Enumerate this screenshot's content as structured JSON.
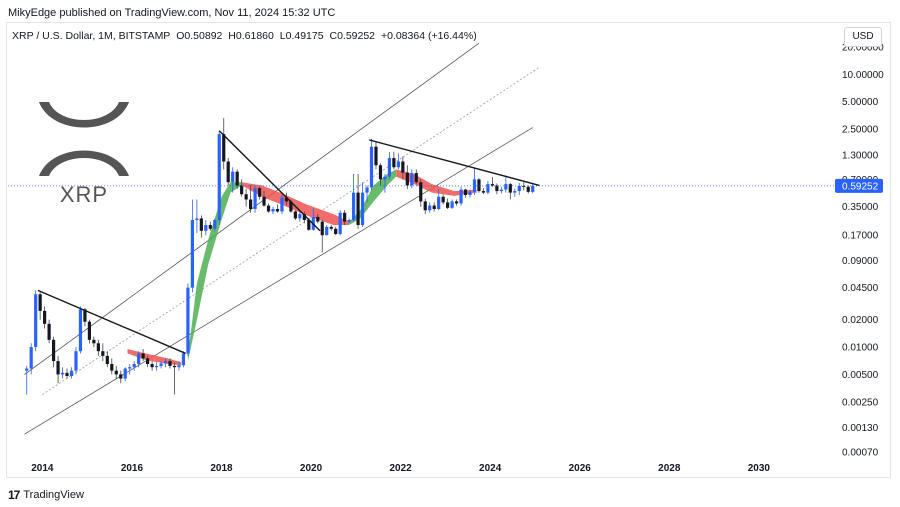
{
  "header": {
    "publish_line": "MikyEdge published on TradingView.com, Nov 11, 2024 15:32 UTC"
  },
  "legend": {
    "symbol": "XRP / U.S. Dollar, 1M, BITSTAMP",
    "open": "O0.50892",
    "high": "H0.61860",
    "low": "L0.49175",
    "close": "C0.59252",
    "change": "+0.08364 (+16.44%)"
  },
  "currency_button": "USD",
  "logo": {
    "text": "XRP"
  },
  "footer": {
    "brand": "TradingView",
    "logo_mark": "17"
  },
  "colors": {
    "up": "#2962ff",
    "down": "#131722",
    "ribbon_up": "#4caf50",
    "ribbon_down": "#ef5350",
    "price_label": "#2962ff",
    "channel": "#555555"
  },
  "chart_data": {
    "type": "candlestick",
    "y_scale": "log",
    "y_ticks": [
      "20.00000",
      "10.00000",
      "5.00000",
      "2.50000",
      "1.30000",
      "0.70000",
      "0.35000",
      "0.17000",
      "0.09000",
      "0.04500",
      "0.02000",
      "0.01000",
      "0.00500",
      "0.00250",
      "0.00130",
      "0.00070"
    ],
    "x_ticks": [
      "2014",
      "2016",
      "2018",
      "2020",
      "2022",
      "2024",
      "2026",
      "2028",
      "2030"
    ],
    "last_price": "0.59252",
    "candles": [
      {
        "t": 2013.65,
        "o": 0.0055,
        "h": 0.0062,
        "l": 0.003,
        "c": 0.0058
      },
      {
        "t": 2013.75,
        "o": 0.0058,
        "h": 0.011,
        "l": 0.005,
        "c": 0.01
      },
      {
        "t": 2013.85,
        "o": 0.01,
        "h": 0.042,
        "l": 0.009,
        "c": 0.038
      },
      {
        "t": 2013.95,
        "o": 0.038,
        "h": 0.04,
        "l": 0.02,
        "c": 0.025
      },
      {
        "t": 2014.05,
        "o": 0.025,
        "h": 0.028,
        "l": 0.016,
        "c": 0.018
      },
      {
        "t": 2014.15,
        "o": 0.018,
        "h": 0.02,
        "l": 0.011,
        "c": 0.012
      },
      {
        "t": 2014.25,
        "o": 0.012,
        "h": 0.013,
        "l": 0.006,
        "c": 0.007
      },
      {
        "t": 2014.35,
        "o": 0.007,
        "h": 0.008,
        "l": 0.004,
        "c": 0.005
      },
      {
        "t": 2014.45,
        "o": 0.005,
        "h": 0.006,
        "l": 0.0045,
        "c": 0.0052
      },
      {
        "t": 2014.55,
        "o": 0.0052,
        "h": 0.0058,
        "l": 0.0045,
        "c": 0.0048
      },
      {
        "t": 2014.65,
        "o": 0.0048,
        "h": 0.006,
        "l": 0.0045,
        "c": 0.0055
      },
      {
        "t": 2014.75,
        "o": 0.0055,
        "h": 0.01,
        "l": 0.005,
        "c": 0.009
      },
      {
        "t": 2014.85,
        "o": 0.009,
        "h": 0.028,
        "l": 0.0085,
        "c": 0.026
      },
      {
        "t": 2014.95,
        "o": 0.026,
        "h": 0.027,
        "l": 0.017,
        "c": 0.019
      },
      {
        "t": 2015.05,
        "o": 0.019,
        "h": 0.02,
        "l": 0.011,
        "c": 0.012
      },
      {
        "t": 2015.15,
        "o": 0.012,
        "h": 0.013,
        "l": 0.01,
        "c": 0.011
      },
      {
        "t": 2015.25,
        "o": 0.011,
        "h": 0.012,
        "l": 0.008,
        "c": 0.009
      },
      {
        "t": 2015.35,
        "o": 0.009,
        "h": 0.011,
        "l": 0.007,
        "c": 0.008
      },
      {
        "t": 2015.45,
        "o": 0.008,
        "h": 0.009,
        "l": 0.006,
        "c": 0.0065
      },
      {
        "t": 2015.55,
        "o": 0.0065,
        "h": 0.0075,
        "l": 0.005,
        "c": 0.0055
      },
      {
        "t": 2015.65,
        "o": 0.0055,
        "h": 0.0062,
        "l": 0.0045,
        "c": 0.005
      },
      {
        "t": 2015.75,
        "o": 0.005,
        "h": 0.0055,
        "l": 0.004,
        "c": 0.0045
      },
      {
        "t": 2015.85,
        "o": 0.0045,
        "h": 0.006,
        "l": 0.0042,
        "c": 0.0058
      },
      {
        "t": 2015.95,
        "o": 0.0058,
        "h": 0.0065,
        "l": 0.005,
        "c": 0.006
      },
      {
        "t": 2016.05,
        "o": 0.006,
        "h": 0.007,
        "l": 0.0055,
        "c": 0.0065
      },
      {
        "t": 2016.15,
        "o": 0.0065,
        "h": 0.009,
        "l": 0.006,
        "c": 0.0085
      },
      {
        "t": 2016.25,
        "o": 0.0085,
        "h": 0.0095,
        "l": 0.007,
        "c": 0.0075
      },
      {
        "t": 2016.35,
        "o": 0.0075,
        "h": 0.008,
        "l": 0.006,
        "c": 0.0065
      },
      {
        "t": 2016.45,
        "o": 0.0065,
        "h": 0.007,
        "l": 0.0055,
        "c": 0.006
      },
      {
        "t": 2016.55,
        "o": 0.006,
        "h": 0.0068,
        "l": 0.0055,
        "c": 0.0062
      },
      {
        "t": 2016.65,
        "o": 0.0062,
        "h": 0.007,
        "l": 0.0058,
        "c": 0.0066
      },
      {
        "t": 2016.75,
        "o": 0.0066,
        "h": 0.0075,
        "l": 0.006,
        "c": 0.007
      },
      {
        "t": 2016.85,
        "o": 0.007,
        "h": 0.0075,
        "l": 0.0058,
        "c": 0.0062
      },
      {
        "t": 2016.95,
        "o": 0.0062,
        "h": 0.0068,
        "l": 0.003,
        "c": 0.006
      },
      {
        "t": 2017.05,
        "o": 0.006,
        "h": 0.007,
        "l": 0.0055,
        "c": 0.0063
      },
      {
        "t": 2017.15,
        "o": 0.0063,
        "h": 0.009,
        "l": 0.006,
        "c": 0.0085
      },
      {
        "t": 2017.25,
        "o": 0.0085,
        "h": 0.05,
        "l": 0.008,
        "c": 0.045
      },
      {
        "t": 2017.35,
        "o": 0.045,
        "h": 0.42,
        "l": 0.04,
        "c": 0.25
      },
      {
        "t": 2017.45,
        "o": 0.25,
        "h": 0.42,
        "l": 0.18,
        "c": 0.26
      },
      {
        "t": 2017.55,
        "o": 0.26,
        "h": 0.28,
        "l": 0.16,
        "c": 0.19
      },
      {
        "t": 2017.65,
        "o": 0.19,
        "h": 0.25,
        "l": 0.17,
        "c": 0.22
      },
      {
        "t": 2017.75,
        "o": 0.22,
        "h": 0.24,
        "l": 0.19,
        "c": 0.2
      },
      {
        "t": 2017.85,
        "o": 0.2,
        "h": 0.26,
        "l": 0.19,
        "c": 0.25
      },
      {
        "t": 2017.95,
        "o": 0.25,
        "h": 2.4,
        "l": 0.22,
        "c": 2.2
      },
      {
        "t": 2018.05,
        "o": 2.2,
        "h": 3.3,
        "l": 0.9,
        "c": 1.1
      },
      {
        "t": 2018.15,
        "o": 1.1,
        "h": 1.2,
        "l": 0.6,
        "c": 0.65
      },
      {
        "t": 2018.25,
        "o": 0.65,
        "h": 0.95,
        "l": 0.5,
        "c": 0.85
      },
      {
        "t": 2018.35,
        "o": 0.85,
        "h": 0.9,
        "l": 0.55,
        "c": 0.6
      },
      {
        "t": 2018.45,
        "o": 0.6,
        "h": 0.7,
        "l": 0.45,
        "c": 0.48
      },
      {
        "t": 2018.55,
        "o": 0.48,
        "h": 0.55,
        "l": 0.35,
        "c": 0.42
      },
      {
        "t": 2018.65,
        "o": 0.42,
        "h": 0.6,
        "l": 0.3,
        "c": 0.33
      },
      {
        "t": 2018.75,
        "o": 0.33,
        "h": 0.6,
        "l": 0.3,
        "c": 0.56
      },
      {
        "t": 2018.85,
        "o": 0.56,
        "h": 0.58,
        "l": 0.42,
        "c": 0.45
      },
      {
        "t": 2018.95,
        "o": 0.45,
        "h": 0.52,
        "l": 0.35,
        "c": 0.36
      },
      {
        "t": 2019.05,
        "o": 0.36,
        "h": 0.38,
        "l": 0.3,
        "c": 0.31
      },
      {
        "t": 2019.15,
        "o": 0.31,
        "h": 0.35,
        "l": 0.29,
        "c": 0.33
      },
      {
        "t": 2019.25,
        "o": 0.33,
        "h": 0.37,
        "l": 0.3,
        "c": 0.31
      },
      {
        "t": 2019.35,
        "o": 0.31,
        "h": 0.47,
        "l": 0.29,
        "c": 0.44
      },
      {
        "t": 2019.45,
        "o": 0.44,
        "h": 0.5,
        "l": 0.36,
        "c": 0.4
      },
      {
        "t": 2019.55,
        "o": 0.4,
        "h": 0.42,
        "l": 0.3,
        "c": 0.31
      },
      {
        "t": 2019.65,
        "o": 0.31,
        "h": 0.32,
        "l": 0.25,
        "c": 0.26
      },
      {
        "t": 2019.75,
        "o": 0.26,
        "h": 0.31,
        "l": 0.24,
        "c": 0.29
      },
      {
        "t": 2019.85,
        "o": 0.29,
        "h": 0.31,
        "l": 0.23,
        "c": 0.25
      },
      {
        "t": 2019.95,
        "o": 0.25,
        "h": 0.26,
        "l": 0.19,
        "c": 0.195
      },
      {
        "t": 2020.05,
        "o": 0.195,
        "h": 0.34,
        "l": 0.19,
        "c": 0.27
      },
      {
        "t": 2020.15,
        "o": 0.27,
        "h": 0.29,
        "l": 0.23,
        "c": 0.24
      },
      {
        "t": 2020.25,
        "o": 0.24,
        "h": 0.25,
        "l": 0.11,
        "c": 0.17
      },
      {
        "t": 2020.35,
        "o": 0.17,
        "h": 0.22,
        "l": 0.17,
        "c": 0.21
      },
      {
        "t": 2020.45,
        "o": 0.21,
        "h": 0.22,
        "l": 0.19,
        "c": 0.2
      },
      {
        "t": 2020.55,
        "o": 0.2,
        "h": 0.21,
        "l": 0.17,
        "c": 0.175
      },
      {
        "t": 2020.65,
        "o": 0.175,
        "h": 0.32,
        "l": 0.17,
        "c": 0.3
      },
      {
        "t": 2020.75,
        "o": 0.3,
        "h": 0.32,
        "l": 0.22,
        "c": 0.24
      },
      {
        "t": 2020.85,
        "o": 0.24,
        "h": 0.26,
        "l": 0.23,
        "c": 0.25
      },
      {
        "t": 2020.95,
        "o": 0.25,
        "h": 0.8,
        "l": 0.24,
        "c": 0.5
      },
      {
        "t": 2021.05,
        "o": 0.5,
        "h": 0.8,
        "l": 0.2,
        "c": 0.22
      },
      {
        "t": 2021.15,
        "o": 0.22,
        "h": 0.65,
        "l": 0.21,
        "c": 0.5
      },
      {
        "t": 2021.25,
        "o": 0.5,
        "h": 0.6,
        "l": 0.39,
        "c": 0.57
      },
      {
        "t": 2021.35,
        "o": 0.57,
        "h": 1.96,
        "l": 0.53,
        "c": 1.6
      },
      {
        "t": 2021.45,
        "o": 1.6,
        "h": 1.8,
        "l": 0.9,
        "c": 1.0
      },
      {
        "t": 2021.55,
        "o": 1.0,
        "h": 1.05,
        "l": 0.6,
        "c": 0.7
      },
      {
        "t": 2021.65,
        "o": 0.7,
        "h": 0.8,
        "l": 0.5,
        "c": 0.75
      },
      {
        "t": 2021.75,
        "o": 0.75,
        "h": 1.4,
        "l": 0.7,
        "c": 1.2
      },
      {
        "t": 2021.85,
        "o": 1.2,
        "h": 1.41,
        "l": 0.9,
        "c": 0.95
      },
      {
        "t": 2021.95,
        "o": 0.95,
        "h": 1.35,
        "l": 0.9,
        "c": 1.1
      },
      {
        "t": 2022.05,
        "o": 1.1,
        "h": 1.25,
        "l": 0.7,
        "c": 0.83
      },
      {
        "t": 2022.15,
        "o": 0.83,
        "h": 1.0,
        "l": 0.55,
        "c": 0.6
      },
      {
        "t": 2022.25,
        "o": 0.6,
        "h": 0.9,
        "l": 0.56,
        "c": 0.82
      },
      {
        "t": 2022.35,
        "o": 0.82,
        "h": 0.9,
        "l": 0.62,
        "c": 0.65
      },
      {
        "t": 2022.45,
        "o": 0.65,
        "h": 0.7,
        "l": 0.35,
        "c": 0.4
      },
      {
        "t": 2022.55,
        "o": 0.4,
        "h": 0.43,
        "l": 0.29,
        "c": 0.32
      },
      {
        "t": 2022.65,
        "o": 0.32,
        "h": 0.39,
        "l": 0.3,
        "c": 0.36
      },
      {
        "t": 2022.75,
        "o": 0.36,
        "h": 0.39,
        "l": 0.31,
        "c": 0.33
      },
      {
        "t": 2022.85,
        "o": 0.33,
        "h": 0.55,
        "l": 0.32,
        "c": 0.45
      },
      {
        "t": 2022.95,
        "o": 0.45,
        "h": 0.48,
        "l": 0.37,
        "c": 0.39
      },
      {
        "t": 2023.05,
        "o": 0.39,
        "h": 0.43,
        "l": 0.33,
        "c": 0.34
      },
      {
        "t": 2023.15,
        "o": 0.34,
        "h": 0.42,
        "l": 0.33,
        "c": 0.4
      },
      {
        "t": 2023.25,
        "o": 0.4,
        "h": 0.42,
        "l": 0.36,
        "c": 0.38
      },
      {
        "t": 2023.35,
        "o": 0.38,
        "h": 0.58,
        "l": 0.36,
        "c": 0.54
      },
      {
        "t": 2023.45,
        "o": 0.54,
        "h": 0.55,
        "l": 0.44,
        "c": 0.47
      },
      {
        "t": 2023.55,
        "o": 0.47,
        "h": 0.54,
        "l": 0.44,
        "c": 0.51
      },
      {
        "t": 2023.65,
        "o": 0.51,
        "h": 0.94,
        "l": 0.47,
        "c": 0.7
      },
      {
        "t": 2023.75,
        "o": 0.7,
        "h": 0.72,
        "l": 0.5,
        "c": 0.52
      },
      {
        "t": 2023.85,
        "o": 0.52,
        "h": 0.56,
        "l": 0.48,
        "c": 0.5
      },
      {
        "t": 2023.95,
        "o": 0.5,
        "h": 0.67,
        "l": 0.48,
        "c": 0.62
      },
      {
        "t": 2024.05,
        "o": 0.62,
        "h": 0.74,
        "l": 0.58,
        "c": 0.6
      },
      {
        "t": 2024.15,
        "o": 0.6,
        "h": 0.63,
        "l": 0.48,
        "c": 0.52
      },
      {
        "t": 2024.25,
        "o": 0.52,
        "h": 0.58,
        "l": 0.49,
        "c": 0.54
      },
      {
        "t": 2024.35,
        "o": 0.54,
        "h": 0.74,
        "l": 0.5,
        "c": 0.62
      },
      {
        "t": 2024.45,
        "o": 0.62,
        "h": 0.64,
        "l": 0.42,
        "c": 0.5
      },
      {
        "t": 2024.55,
        "o": 0.5,
        "h": 0.55,
        "l": 0.45,
        "c": 0.52
      },
      {
        "t": 2024.65,
        "o": 0.52,
        "h": 0.64,
        "l": 0.47,
        "c": 0.59
      },
      {
        "t": 2024.75,
        "o": 0.59,
        "h": 0.65,
        "l": 0.53,
        "c": 0.58
      },
      {
        "t": 2024.85,
        "o": 0.58,
        "h": 0.6,
        "l": 0.49,
        "c": 0.51
      },
      {
        "t": 2024.95,
        "o": 0.5089,
        "h": 0.6186,
        "l": 0.4918,
        "c": 0.5925
      }
    ],
    "trendlines": [
      {
        "t1": 2013.9,
        "p1": 0.042,
        "t2": 2017.2,
        "p2": 0.0085
      },
      {
        "t1": 2017.95,
        "p1": 2.4,
        "t2": 2020.2,
        "p2": 0.19
      },
      {
        "t1": 2021.3,
        "p1": 1.9,
        "t2": 2025.1,
        "p2": 0.6
      }
    ],
    "channel_lines": [
      {
        "t1": 2013.6,
        "p1": 0.0011,
        "t2": 2024.95,
        "p2": 2.6,
        "style": "solid"
      },
      {
        "t1": 2014.0,
        "p1": 0.003,
        "t2": 2025.1,
        "p2": 12.0,
        "style": "dotted"
      },
      {
        "t1": 2013.6,
        "p1": 0.005,
        "t2": 2023.75,
        "p2": 22.0,
        "style": "solid"
      }
    ],
    "ribbons": [
      {
        "color": "up",
        "points": [
          [
            2017.25,
            0.008,
            0.007
          ],
          [
            2017.45,
            0.05,
            0.02
          ],
          [
            2017.7,
            0.15,
            0.08
          ],
          [
            2018.0,
            0.45,
            0.25
          ],
          [
            2018.2,
            0.65,
            0.5
          ],
          [
            2018.45,
            0.65,
            0.6
          ]
        ]
      },
      {
        "color": "down",
        "points": [
          [
            2018.45,
            0.65,
            0.6
          ],
          [
            2018.9,
            0.6,
            0.45
          ],
          [
            2019.4,
            0.48,
            0.36
          ],
          [
            2019.9,
            0.37,
            0.28
          ],
          [
            2020.5,
            0.29,
            0.22
          ],
          [
            2020.85,
            0.24,
            0.22
          ]
        ]
      },
      {
        "color": "up",
        "points": [
          [
            2020.85,
            0.24,
            0.22
          ],
          [
            2021.1,
            0.32,
            0.26
          ],
          [
            2021.4,
            0.6,
            0.4
          ],
          [
            2021.7,
            0.8,
            0.6
          ],
          [
            2021.9,
            0.9,
            0.75
          ]
        ]
      },
      {
        "color": "down",
        "points": [
          [
            2021.9,
            0.9,
            0.75
          ],
          [
            2022.3,
            0.8,
            0.62
          ],
          [
            2022.7,
            0.62,
            0.5
          ],
          [
            2023.2,
            0.52,
            0.46
          ],
          [
            2023.7,
            0.54,
            0.5
          ]
        ]
      },
      {
        "color": "down",
        "points": [
          [
            2015.9,
            0.0095,
            0.0085
          ],
          [
            2016.3,
            0.0085,
            0.0072
          ],
          [
            2016.8,
            0.0075,
            0.0065
          ],
          [
            2017.1,
            0.0068,
            0.0063
          ]
        ]
      }
    ]
  }
}
